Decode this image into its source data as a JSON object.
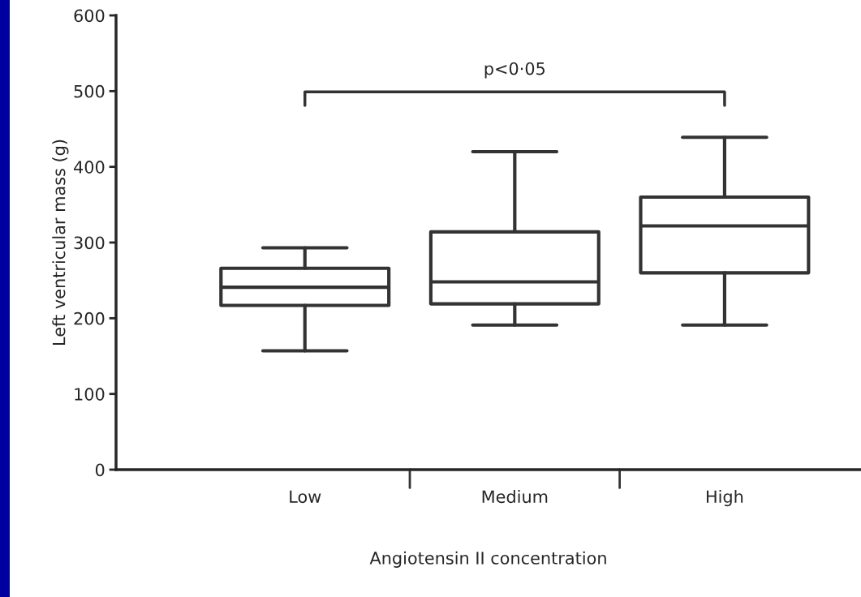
{
  "chart_data": {
    "type": "box",
    "ylabel": "Left ventricular mass (g)",
    "xlabel": "Angiotensin II concentration",
    "categories": [
      "Low",
      "Medium",
      "High"
    ],
    "boxes": [
      {
        "low": 157,
        "q1": 217,
        "median": 241,
        "q3": 266,
        "high": 293
      },
      {
        "low": 191,
        "q1": 219,
        "median": 248,
        "q3": 314,
        "high": 420
      },
      {
        "low": 191,
        "q1": 260,
        "median": 322,
        "q3": 360,
        "high": 439
      }
    ],
    "ylim": [
      0,
      600
    ],
    "yticks": [
      0,
      100,
      200,
      300,
      400,
      500,
      600
    ],
    "grid": false,
    "legend": false,
    "annotations": [
      "p<0·05"
    ]
  }
}
